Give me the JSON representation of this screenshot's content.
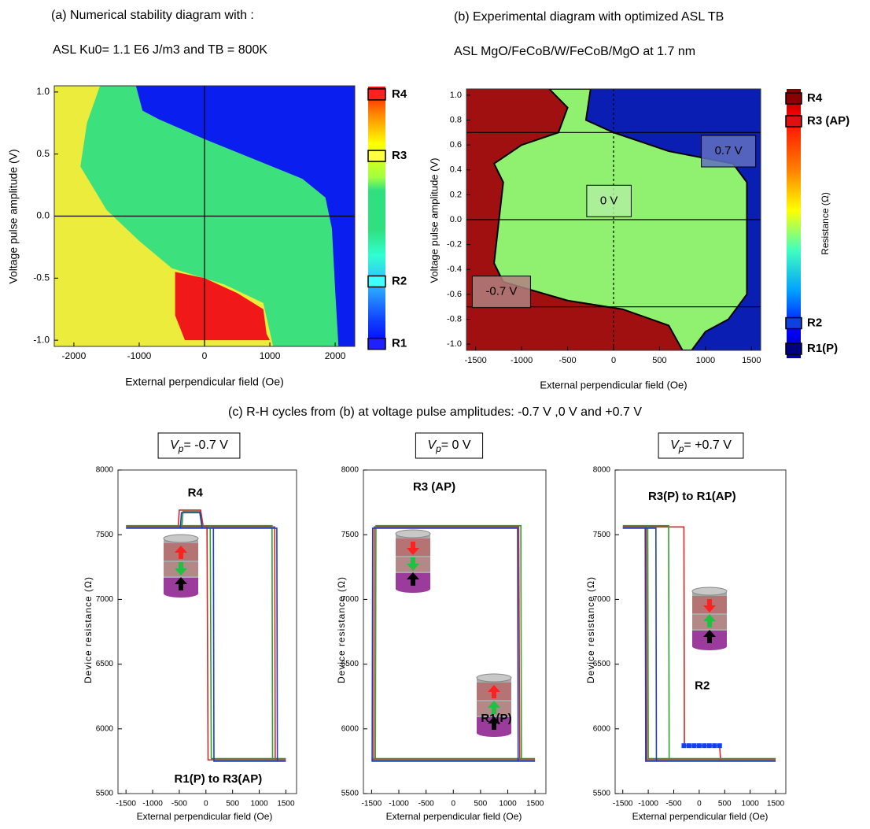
{
  "panel_c_title": "(c)  R-H cycles  from (b) at voltage pulse amplitudes: -0.7 V ,0 V and +0.7 V",
  "chart_data": [
    {
      "type": "region",
      "title": "(a)  Numerical stability diagram with :",
      "subtitle": "ASL  Ku0= 1.1 E6 J/m3 and TB = 800K",
      "xlabel": "External perpendicular field (Oe)",
      "ylabel": "Voltage pulse amplitude (V)",
      "xlim": [
        -2300,
        2300
      ],
      "ylim": [
        -1.05,
        1.05
      ],
      "xticks": [
        -2000,
        -1000,
        0,
        1000,
        2000
      ],
      "yticks": [
        {
          "value": -1.0,
          "label": "-1.0"
        },
        -0.5,
        {
          "value": 0.0,
          "label": "0.0"
        },
        0.5,
        {
          "value": 1.0,
          "label": "1.0"
        }
      ],
      "background": "#ecec3c",
      "regions": [
        {
          "color": "#3ce07c",
          "x": [
            -1600,
            -1050,
            -950,
            -700,
            0,
            800,
            1500,
            1850,
            1950,
            2000,
            2050,
            1050,
            900,
            300,
            -500,
            -1000,
            -1500,
            -1900,
            -1800
          ],
          "y": [
            1.05,
            1.05,
            0.85,
            0.78,
            0.62,
            0.45,
            0.3,
            0.15,
            -0.1,
            -0.6,
            -1.05,
            -1.05,
            -0.7,
            -0.55,
            -0.42,
            -0.2,
            0.05,
            0.4,
            0.75
          ]
        },
        {
          "color": "#0a1ef0",
          "x": [
            -1050,
            2300,
            2300,
            2050,
            2000,
            1950,
            1850,
            1500,
            800,
            0,
            -700,
            -950
          ],
          "y": [
            1.05,
            1.05,
            -1.05,
            -1.05,
            -0.6,
            -0.1,
            0.15,
            0.3,
            0.45,
            0.62,
            0.78,
            0.85
          ]
        },
        {
          "color": "#f01818",
          "x": [
            -450,
            0,
            500,
            900,
            950,
            1000,
            -300,
            -450
          ],
          "y": [
            -0.45,
            -0.5,
            -0.62,
            -0.75,
            -0.95,
            -1.0,
            -1.0,
            -0.8
          ]
        }
      ],
      "hlines": [
        0
      ],
      "vlines": [
        0
      ],
      "colorbar": {
        "labels": [
          "R4",
          "R3",
          "R2",
          "R1"
        ],
        "colors": [
          "#ff2020",
          "#ffff40",
          "#40ffff",
          "#2020ff"
        ]
      }
    },
    {
      "type": "region",
      "title": "(b)  Experimental diagram with optimized ASL TB",
      "subtitle": "ASL MgO/FeCoB/W/FeCoB/MgO at 1.7 nm",
      "xlabel": "External perpendicular field (Oe)",
      "ylabel": "Voltage pulse amplitude (V)",
      "xlim": [
        -1600,
        1600
      ],
      "ylim": [
        -1.05,
        1.05
      ],
      "xticks": [
        -1500,
        -1000,
        -500,
        0,
        500,
        1000,
        1500
      ],
      "yticks": [
        {
          "value": -1.0,
          "label": "-1.0"
        },
        -0.8,
        -0.6,
        -0.4,
        -0.2,
        {
          "value": 0.0,
          "label": "0.0"
        },
        0.2,
        0.4,
        0.6,
        0.8,
        {
          "value": 1.0,
          "label": "1.0"
        }
      ],
      "background": "#a01010",
      "regions": [
        {
          "color": "#0a1eb4",
          "x": [
            -250,
            1600,
            1600,
            850,
            1000,
            1250,
            1450,
            1450,
            1300,
            600,
            0,
            -300
          ],
          "y": [
            1.05,
            1.05,
            -1.05,
            -1.05,
            -0.9,
            -0.8,
            -0.6,
            0.3,
            0.45,
            0.55,
            0.7,
            0.8
          ]
        },
        {
          "color": "#90f070",
          "stroke": "#000",
          "x": [
            -700,
            -250,
            -300,
            0,
            600,
            1300,
            1450,
            1450,
            1250,
            1000,
            850,
            750,
            600,
            100,
            -500,
            -1200,
            -1300,
            -1200,
            -1300,
            -1000,
            -600,
            -500
          ],
          "y": [
            1.05,
            1.05,
            0.8,
            0.7,
            0.55,
            0.45,
            0.3,
            -0.6,
            -0.8,
            -0.9,
            -1.05,
            -1.05,
            -0.85,
            -0.72,
            -0.65,
            -0.5,
            -0.35,
            0.3,
            0.45,
            0.6,
            0.7,
            0.9
          ]
        }
      ],
      "hlines": [
        0.7,
        0,
        -0.7
      ],
      "vlines": [
        0
      ],
      "vline_dash": true,
      "annotations": [
        {
          "text": "0.7 V",
          "x": 1250,
          "y": 0.55,
          "box": "#6070c0"
        },
        {
          "text": "0 V",
          "x": -50,
          "y": 0.15,
          "box": "#b0f0a0"
        },
        {
          "text": "-0.7 V",
          "x": -1220,
          "y": -0.58,
          "box": "#b08080"
        }
      ],
      "colorbar": {
        "labels": [
          "R4",
          "R3 (AP)",
          "R2",
          "R1(P)"
        ],
        "colors": [
          "#8b0000",
          "#e01010",
          "#1040e0",
          "#000080"
        ],
        "title": "Resistance (Ω)"
      }
    },
    {
      "type": "line",
      "header": "Vp= -0.7 V",
      "xlabel": "External perpendicular field (Oe)",
      "ylabel": "Device resistance (Ω)",
      "xlim": [
        -1650,
        1700
      ],
      "ylim": [
        5500,
        8000
      ],
      "xticks": [
        -1500,
        -1000,
        -500,
        0,
        500,
        1000,
        1500
      ],
      "yticks": [
        5500,
        6000,
        6500,
        7000,
        7500,
        8000
      ],
      "series": [
        {
          "color": "#d62728",
          "x": [
            -1500,
            -520,
            -500,
            -100,
            -50,
            20,
            40,
            1500,
            1300,
            1290,
            -1500
          ],
          "values": [
            7560,
            7560,
            7690,
            7690,
            7560,
            7560,
            5760,
            5760,
            5760,
            7560,
            7560
          ]
        },
        {
          "color": "#2ca02c",
          "x": [
            -1500,
            -450,
            -430,
            -120,
            -80,
            80,
            100,
            1500,
            1250,
            1240,
            -1500
          ],
          "values": [
            7570,
            7570,
            7680,
            7680,
            7570,
            7570,
            5770,
            5770,
            5770,
            7570,
            7570
          ]
        },
        {
          "color": "#1f3fbf",
          "x": [
            -1500,
            -480,
            -460,
            -110,
            -70,
            140,
            150,
            1500,
            1340,
            1330,
            -1500
          ],
          "values": [
            7550,
            7550,
            7670,
            7670,
            7550,
            7550,
            5750,
            5750,
            5750,
            7550,
            7550
          ]
        }
      ],
      "annotations": [
        {
          "text": "R4",
          "x": -200,
          "y": 7820
        },
        {
          "text": "R1(P) to R3(AP)",
          "x": 230,
          "y": 5610
        }
      ]
    },
    {
      "type": "line",
      "header": "Vp= 0 V",
      "xlabel": "External perpendicular field (Oe)",
      "ylabel": "Device resistance (Ω)",
      "xlim": [
        -1650,
        1700
      ],
      "ylim": [
        5500,
        8000
      ],
      "xticks": [
        -1500,
        -1000,
        -500,
        0,
        500,
        1000,
        1500
      ],
      "yticks": [
        5500,
        6000,
        6500,
        7000,
        7500,
        8000
      ],
      "series": [
        {
          "color": "#d62728",
          "x": [
            -1500,
            -1460,
            -1450,
            1200,
            1220,
            1500,
            -1500
          ],
          "values": [
            5760,
            5760,
            7560,
            7560,
            5760,
            5760,
            5760
          ]
        },
        {
          "color": "#2ca02c",
          "x": [
            -1500,
            -1430,
            -1420,
            1240,
            1250,
            1500,
            -1500
          ],
          "values": [
            5770,
            5770,
            7570,
            7570,
            5770,
            5770,
            5770
          ]
        },
        {
          "color": "#1f3fbf",
          "x": [
            -1500,
            -1490,
            -1480,
            1180,
            1190,
            1500,
            -1500
          ],
          "values": [
            5750,
            5750,
            7550,
            7550,
            5750,
            5750,
            5750
          ]
        }
      ],
      "annotations": [
        {
          "text": "R3 (AP)",
          "x": -350,
          "y": 7866
        },
        {
          "text": "R1(P)",
          "x": 790,
          "y": 6078
        }
      ]
    },
    {
      "type": "line",
      "header": "Vp= +0.7 V",
      "xlabel": "External perpendicular field (Oe)",
      "ylabel": "Device resistance (Ω)",
      "xlim": [
        -1650,
        1700
      ],
      "ylim": [
        5500,
        8000
      ],
      "xticks": [
        -1500,
        -1000,
        -500,
        0,
        500,
        1000,
        1500
      ],
      "yticks": [
        5500,
        6000,
        6500,
        7000,
        7500,
        8000
      ],
      "series": [
        {
          "color": "#d62728",
          "x": [
            -1500,
            -300,
            -290,
            400,
            420,
            1500,
            -1030,
            -1040,
            -1500
          ],
          "values": [
            7560,
            7560,
            5870,
            5870,
            5760,
            5760,
            5760,
            7560,
            7560
          ]
        },
        {
          "color": "#2ca02c",
          "x": [
            -1500,
            -600,
            -590,
            1500,
            -1000,
            -1010,
            -1500
          ],
          "values": [
            7570,
            7570,
            5770,
            5770,
            5770,
            7570,
            7570
          ]
        },
        {
          "color": "#1f3fbf",
          "x": [
            -1500,
            -850,
            -840,
            1500,
            -1050,
            -1060,
            -1500
          ],
          "values": [
            7550,
            7550,
            5750,
            5750,
            5750,
            7550,
            7550
          ]
        },
        {
          "color": "#1040ff",
          "marker": "square",
          "x": [
            -300,
            -200,
            -100,
            0,
            100,
            200,
            300,
            400
          ],
          "values": [
            5870,
            5870,
            5870,
            5870,
            5870,
            5870,
            5870,
            5870
          ]
        }
      ],
      "annotations": [
        {
          "text": "R3(P) to R1(AP)",
          "x": -140,
          "y": 7793
        },
        {
          "text": "R2",
          "x": 60,
          "y": 6330
        }
      ]
    }
  ]
}
